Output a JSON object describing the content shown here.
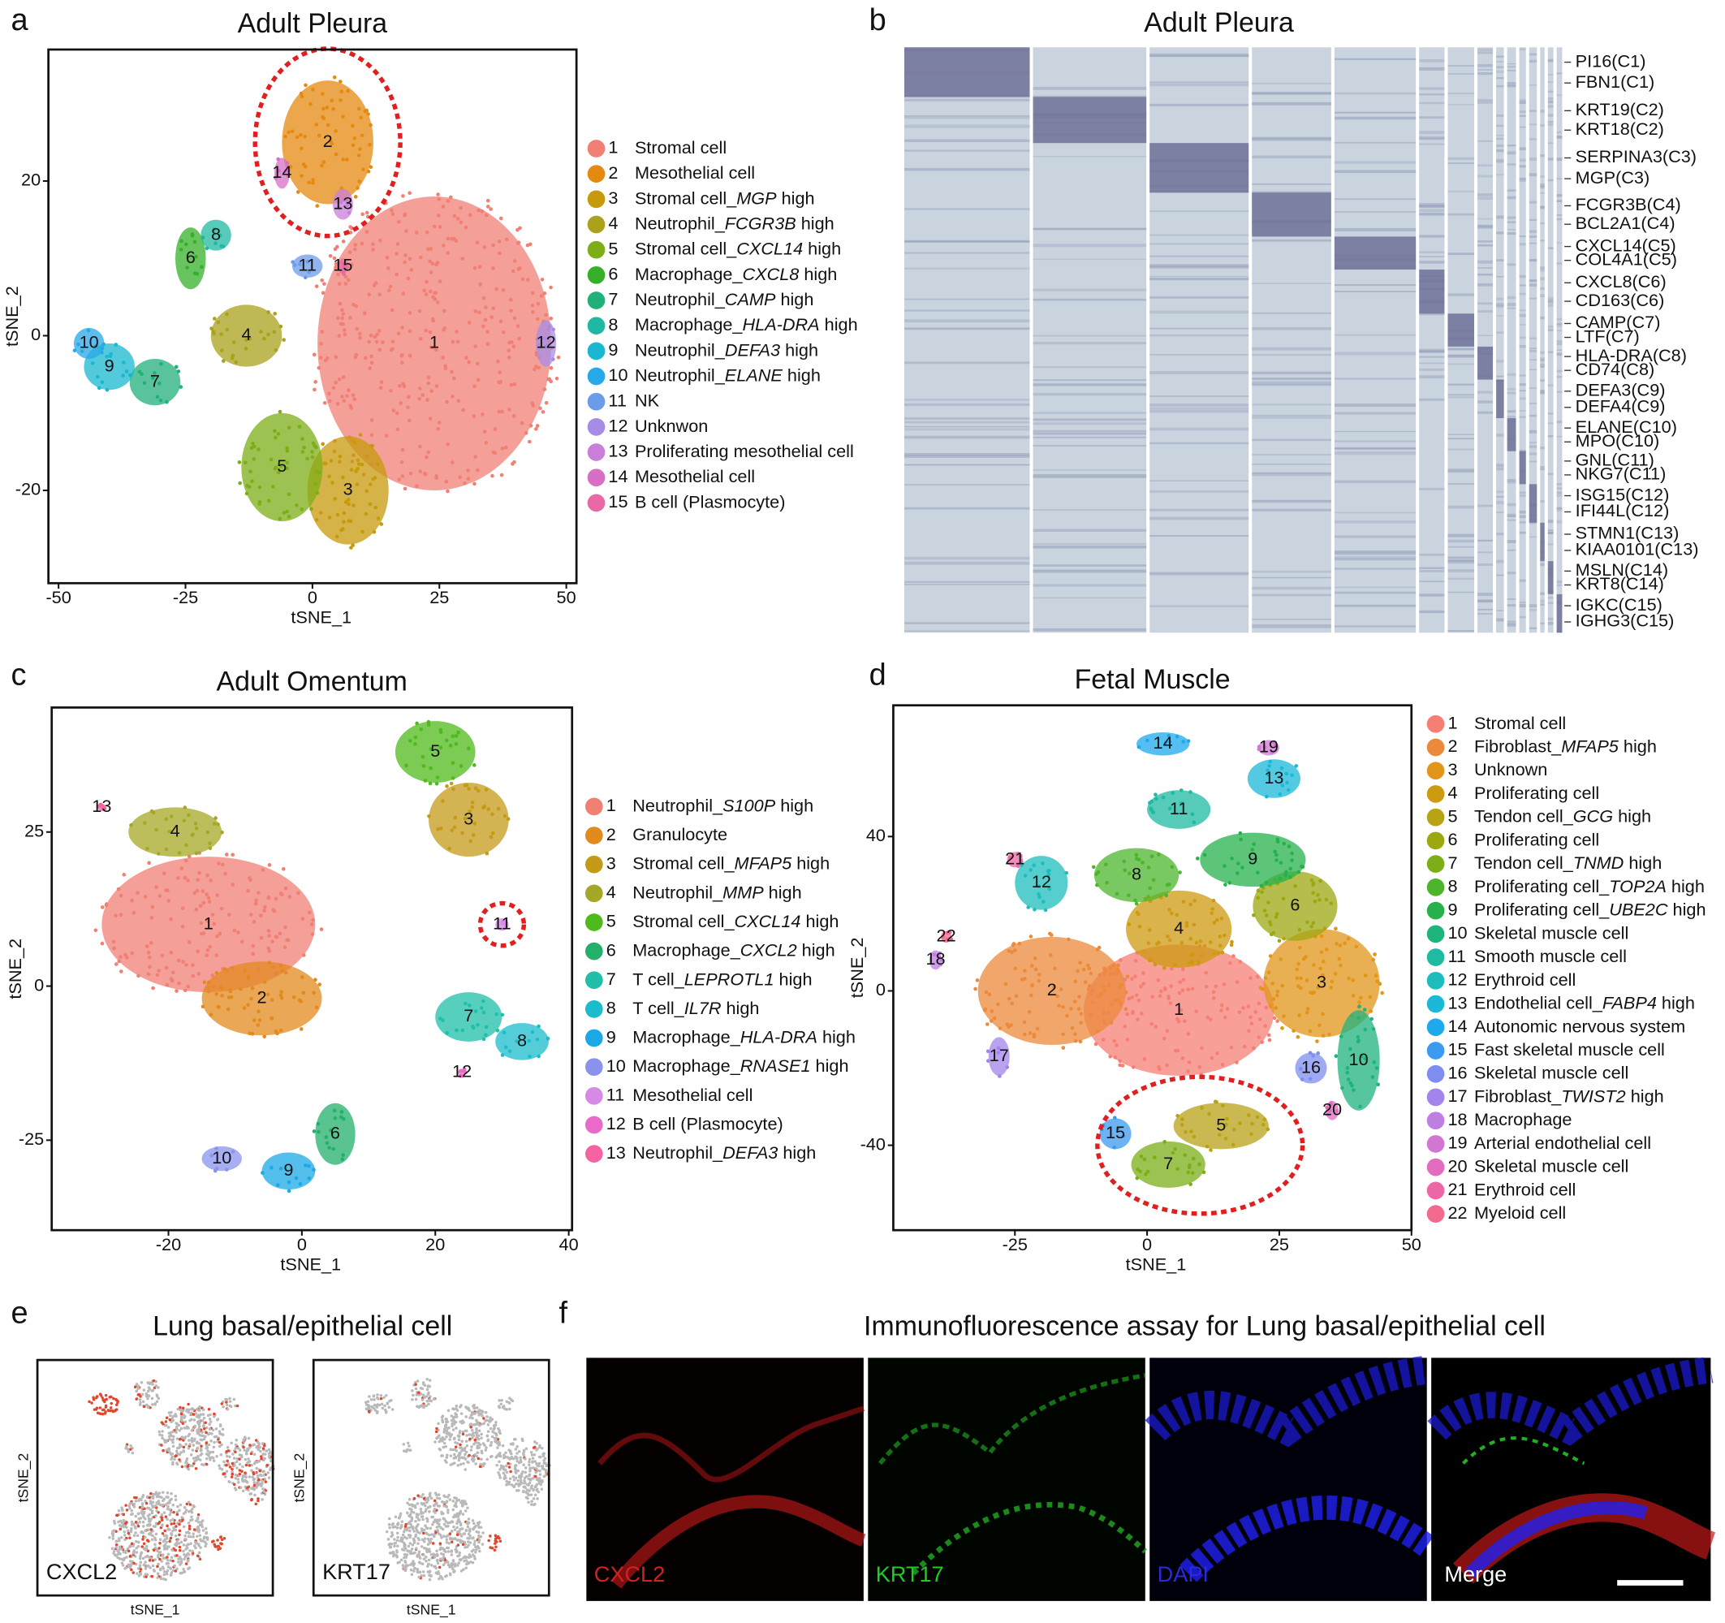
{
  "panels": {
    "a": {
      "letter": "a",
      "title": "Adult Pleura",
      "xlabel": "tSNE_1",
      "ylabel": "tSNE_2",
      "xlim": [
        -52,
        52
      ],
      "ylim": [
        -32,
        37
      ],
      "xticks": [
        -50,
        -25,
        0,
        25,
        50
      ],
      "yticks": [
        -20,
        0,
        20
      ],
      "highlight": [
        "2"
      ],
      "clusters": [
        {
          "id": "1",
          "label": [
            "Stromal cell"
          ],
          "color": "#f07f74",
          "x": 24,
          "y": -1,
          "rx": 23,
          "ry": 19
        },
        {
          "id": "2",
          "label": [
            "Mesothelial cell"
          ],
          "color": "#e58a10",
          "x": 3,
          "y": 25,
          "rx": 9,
          "ry": 8
        },
        {
          "id": "3",
          "label": [
            "Stromal cell_",
            "MGP",
            " high"
          ],
          "color": "#c79a0b",
          "x": 7,
          "y": -20,
          "rx": 8,
          "ry": 7
        },
        {
          "id": "4",
          "label": [
            "Neutrophil_",
            "FCGR3B",
            " high"
          ],
          "color": "#aaa21c",
          "x": -13,
          "y": 0,
          "rx": 7,
          "ry": 4
        },
        {
          "id": "5",
          "label": [
            "Stromal cell_",
            "CXCL14",
            " high"
          ],
          "color": "#7dae17",
          "x": -6,
          "y": -17,
          "rx": 8,
          "ry": 7
        },
        {
          "id": "6",
          "label": [
            "Macrophage_",
            "CXCL8",
            " high"
          ],
          "color": "#36b02a",
          "x": -24,
          "y": 10,
          "rx": 3,
          "ry": 4
        },
        {
          "id": "7",
          "label": [
            "Neutrophil_",
            "CAMP",
            " high"
          ],
          "color": "#22b07a",
          "x": -31,
          "y": -6,
          "rx": 5,
          "ry": 3
        },
        {
          "id": "8",
          "label": [
            "Macrophage_",
            "HLA-DRA",
            " high"
          ],
          "color": "#1fb8a3",
          "x": -19,
          "y": 13,
          "rx": 3,
          "ry": 2
        },
        {
          "id": "9",
          "label": [
            "Neutrophil_",
            "DEFA3",
            " high"
          ],
          "color": "#1ab8d0",
          "x": -40,
          "y": -4,
          "rx": 5,
          "ry": 3
        },
        {
          "id": "10",
          "label": [
            "Neutrophil_",
            "ELANE",
            " high"
          ],
          "color": "#27a8e8",
          "x": -44,
          "y": -1,
          "rx": 3,
          "ry": 2
        },
        {
          "id": "11",
          "label": [
            "NK"
          ],
          "color": "#6c9bea",
          "x": -1,
          "y": 9,
          "rx": 3,
          "ry": 1.5
        },
        {
          "id": "12",
          "label": [
            "Unknwon"
          ],
          "color": "#a78ce6",
          "x": 46,
          "y": -1,
          "rx": 2,
          "ry": 3
        },
        {
          "id": "13",
          "label": [
            "Proliferating mesothelial cell"
          ],
          "color": "#c97fd9",
          "x": 6,
          "y": 17,
          "rx": 2,
          "ry": 2
        },
        {
          "id": "14",
          "label": [
            "Mesothelial cell"
          ],
          "color": "#d76fc4",
          "x": -6,
          "y": 21,
          "rx": 1.5,
          "ry": 2
        },
        {
          "id": "15",
          "label": [
            "B cell (Plasmocyte)"
          ],
          "color": "#e869a6",
          "x": 6,
          "y": 9,
          "rx": 1,
          "ry": 1
        }
      ]
    },
    "b": {
      "letter": "b",
      "title": "Adult Pleura",
      "genes": [
        "PI16(C1)",
        "FBN1(C1)",
        "KRT19(C2)",
        "KRT18(C2)",
        "SERPINA3(C3)",
        "MGP(C3)",
        "FCGR3B(C4)",
        "BCL2A1(C4)",
        "CXCL14(C5)",
        "COL4A1(C5)",
        "CXCL8(C6)",
        "CD163(C6)",
        "CAMP(C7)",
        "LTF(C7)",
        "HLA-DRA(C8)",
        "CD74(C8)",
        "DEFA3(C9)",
        "DEFA4(C9)",
        "ELANE(C10)",
        "MPO(C10)",
        "GNL(C11)",
        "NKG7(C11)",
        "ISG15(C12)",
        "IFI44L(C12)",
        "STMN1(C13)",
        "KIAA0101(C13)",
        "MSLN(C14)",
        "KRT8(C14)",
        "IGKC(C15)",
        "IGHG3(C15)"
      ]
    },
    "c": {
      "letter": "c",
      "title": "Adult Omentum",
      "xlabel": "tSNE_1",
      "ylabel": "tSNE_2",
      "xlim": [
        -37.5,
        40.5
      ],
      "ylim": [
        -39.6,
        45.2
      ],
      "xticks": [
        -20,
        0,
        20,
        40
      ],
      "yticks": [
        -25,
        0,
        25
      ],
      "highlight": [
        "11"
      ],
      "clusters": [
        {
          "id": "1",
          "label": [
            "Neutrophil_",
            "S100P",
            " high"
          ],
          "color": "#f07f74",
          "x": -14,
          "y": 10,
          "rx": 16,
          "ry": 11
        },
        {
          "id": "2",
          "label": [
            "Granulocyte"
          ],
          "color": "#e38a1e",
          "x": -6,
          "y": -2,
          "rx": 9,
          "ry": 6
        },
        {
          "id": "3",
          "label": [
            "Stromal cell_",
            "MFAP5",
            " high"
          ],
          "color": "#c59a18",
          "x": 25,
          "y": 27,
          "rx": 6,
          "ry": 6
        },
        {
          "id": "4",
          "label": [
            "Neutrophil_",
            "MMP",
            " high"
          ],
          "color": "#a5a826",
          "x": -19,
          "y": 25,
          "rx": 7,
          "ry": 4
        },
        {
          "id": "5",
          "label": [
            "Stromal cell_",
            "CXCL14",
            " high"
          ],
          "color": "#4fba1b",
          "x": 20,
          "y": 38,
          "rx": 6,
          "ry": 5
        },
        {
          "id": "6",
          "label": [
            "Macrophage_",
            "CXCL2",
            " high"
          ],
          "color": "#22b06a",
          "x": 5,
          "y": -24,
          "rx": 3,
          "ry": 5
        },
        {
          "id": "7",
          "label": [
            "T cell_",
            "LEPROTL1",
            " high"
          ],
          "color": "#1fbfaa",
          "x": 25,
          "y": -5,
          "rx": 5,
          "ry": 4
        },
        {
          "id": "8",
          "label": [
            "T cell_",
            "IL7R",
            " high"
          ],
          "color": "#1bbccc",
          "x": 33,
          "y": -9,
          "rx": 4,
          "ry": 3
        },
        {
          "id": "9",
          "label": [
            "Macrophage_",
            "HLA-DRA",
            " high"
          ],
          "color": "#1ba8e6",
          "x": -2,
          "y": -30,
          "rx": 4,
          "ry": 3
        },
        {
          "id": "10",
          "label": [
            "Macrophage_",
            "RNASE1",
            " high"
          ],
          "color": "#8a93ec",
          "x": -12,
          "y": -28,
          "rx": 3,
          "ry": 2
        },
        {
          "id": "11",
          "label": [
            "Mesothelial cell"
          ],
          "color": "#d68ae6",
          "x": 30,
          "y": 10,
          "rx": 1,
          "ry": 1
        },
        {
          "id": "12",
          "label": [
            "B cell (Plasmocyte)"
          ],
          "color": "#e96ac8",
          "x": 24,
          "y": -14,
          "rx": 0.6,
          "ry": 0.6
        },
        {
          "id": "13",
          "label": [
            "Neutrophil_",
            "DEFA3",
            " high"
          ],
          "color": "#f564a0",
          "x": -30,
          "y": 29,
          "rx": 0.6,
          "ry": 0.6
        }
      ]
    },
    "d": {
      "letter": "d",
      "title": "Fetal Muscle",
      "xlabel": "tSNE_1",
      "ylabel": "tSNE_2",
      "xlim": [
        -48,
        50
      ],
      "ylim": [
        -62,
        74
      ],
      "xticks": [
        -25,
        0,
        25,
        50
      ],
      "yticks": [
        -40,
        0,
        40
      ],
      "highlight": [
        "5",
        "7"
      ],
      "clusters": [
        {
          "id": "1",
          "label": [
            "Stromal cell"
          ],
          "color": "#f57f74",
          "x": 6,
          "y": -5,
          "rx": 18,
          "ry": 17
        },
        {
          "id": "2",
          "label": [
            "Fibroblast_",
            "MFAP5",
            " high"
          ],
          "color": "#ec8a3b",
          "x": -18,
          "y": 0,
          "rx": 14,
          "ry": 14
        },
        {
          "id": "3",
          "label": [
            "Unknown"
          ],
          "color": "#e19519",
          "x": 33,
          "y": 2,
          "rx": 11,
          "ry": 14
        },
        {
          "id": "4",
          "label": [
            "Proliferating cell"
          ],
          "color": "#cd9a10",
          "x": 6,
          "y": 16,
          "rx": 10,
          "ry": 10
        },
        {
          "id": "5",
          "label": [
            "Tendon cell_",
            "GCG",
            " high"
          ],
          "color": "#b8a215",
          "x": 14,
          "y": -35,
          "rx": 9,
          "ry": 6
        },
        {
          "id": "6",
          "label": [
            "Proliferating cell"
          ],
          "color": "#9ca812",
          "x": 28,
          "y": 22,
          "rx": 8,
          "ry": 9
        },
        {
          "id": "7",
          "label": [
            "Tendon cell_",
            "TNMD",
            " high"
          ],
          "color": "#7bae17",
          "x": 4,
          "y": -45,
          "rx": 7,
          "ry": 6
        },
        {
          "id": "8",
          "label": [
            "Proliferating cell_",
            "TOP2A",
            " high"
          ],
          "color": "#4db52c",
          "x": -2,
          "y": 30,
          "rx": 8,
          "ry": 7
        },
        {
          "id": "9",
          "label": [
            "Proliferating cell_",
            "UBE2C",
            " high"
          ],
          "color": "#26b14d",
          "x": 20,
          "y": 34,
          "rx": 10,
          "ry": 7
        },
        {
          "id": "10",
          "label": [
            "Skeletal muscle cell"
          ],
          "color": "#1fb37e",
          "x": 40,
          "y": -18,
          "rx": 4,
          "ry": 13
        },
        {
          "id": "11",
          "label": [
            "Smooth muscle cell"
          ],
          "color": "#1ebaa1",
          "x": 6,
          "y": 47,
          "rx": 6,
          "ry": 5
        },
        {
          "id": "12",
          "label": [
            "Erythroid cell"
          ],
          "color": "#1dbdbe",
          "x": -20,
          "y": 28,
          "rx": 5,
          "ry": 7
        },
        {
          "id": "13",
          "label": [
            "Endothelial cell_",
            "FABP4",
            " high"
          ],
          "color": "#1bb8d8",
          "x": 24,
          "y": 55,
          "rx": 5,
          "ry": 5
        },
        {
          "id": "14",
          "label": [
            "Autonomic nervous system"
          ],
          "color": "#1ea9ec",
          "x": 3,
          "y": 64,
          "rx": 5,
          "ry": 3
        },
        {
          "id": "15",
          "label": [
            "Fast skeletal muscle cell"
          ],
          "color": "#3c9af0",
          "x": -6,
          "y": -37,
          "rx": 3,
          "ry": 4
        },
        {
          "id": "16",
          "label": [
            "Skeletal muscle cell"
          ],
          "color": "#7e8df0",
          "x": 31,
          "y": -20,
          "rx": 3,
          "ry": 4
        },
        {
          "id": "17",
          "label": [
            "Fibroblast_",
            "TWIST2",
            " high"
          ],
          "color": "#a284ec",
          "x": -28,
          "y": -17,
          "rx": 2,
          "ry": 5
        },
        {
          "id": "18",
          "label": [
            "Macrophage"
          ],
          "color": "#bf7ee2",
          "x": -40,
          "y": 8,
          "rx": 1.2,
          "ry": 2.5
        },
        {
          "id": "19",
          "label": [
            "Arterial endothelial cell"
          ],
          "color": "#d375d2",
          "x": 23,
          "y": 63,
          "rx": 2,
          "ry": 2
        },
        {
          "id": "20",
          "label": [
            "Skeletal muscle cell"
          ],
          "color": "#e26cbf",
          "x": 35,
          "y": -31,
          "rx": 1.2,
          "ry": 2.5
        },
        {
          "id": "21",
          "label": [
            "Erythroid cell"
          ],
          "color": "#ec67a5",
          "x": -25,
          "y": 34,
          "rx": 1.5,
          "ry": 2
        },
        {
          "id": "22",
          "label": [
            "Myeloid cell"
          ],
          "color": "#f26a8d",
          "x": -38,
          "y": 14,
          "rx": 1,
          "ry": 1.5
        }
      ]
    },
    "e": {
      "letter": "e",
      "title": "Lung basal/epithelial cell",
      "markers": [
        "CXCL2",
        "KRT17"
      ],
      "xlabel": "tSNE_1",
      "ylabel": "tSNE_2"
    },
    "f": {
      "letter": "f",
      "title": "Immunofluorescence assay for Lung basal/epithelial cell",
      "channels": [
        "CXCL2",
        "KRT17",
        "DAPI",
        "Merge"
      ]
    }
  }
}
